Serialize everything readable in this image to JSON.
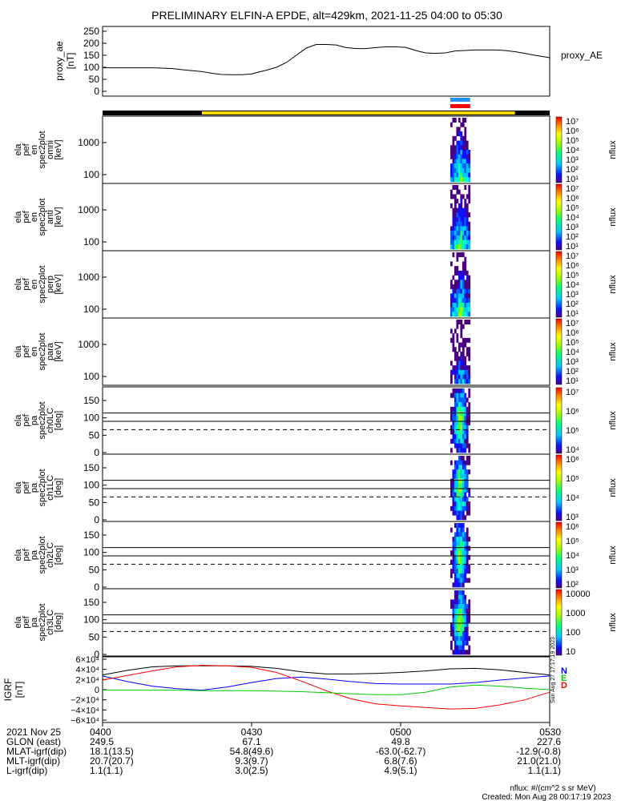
{
  "title": "PRELIMINARY ELFIN-A EPDE, alt=429km, 2021-11-25 04:00 to 05:30",
  "colors": {
    "sunlight_bar": "#ffd700",
    "shadow_bar": "#000000",
    "science_blue": "#1e90ff",
    "science_red": "#ff0000",
    "line_black": "#000000",
    "line_blue": "#0000ff",
    "line_green": "#00cc00",
    "line_red": "#ff0000"
  },
  "chart_data": [
    {
      "type": "line",
      "panel": "proxy_ae",
      "ylabel": [
        "proxy_ae",
        "[nT]"
      ],
      "series": [
        {
          "name": "proxy_AE",
          "x": [
            "04:00",
            "04:10",
            "04:14",
            "04:16",
            "04:20",
            "04:22",
            "04:24",
            "04:26",
            "04:28",
            "04:30",
            "04:31",
            "04:33",
            "04:35",
            "04:37",
            "04:39",
            "04:41",
            "04:43",
            "04:45",
            "04:47",
            "04:49",
            "04:51",
            "04:53",
            "04:55",
            "04:57",
            "04:59",
            "05:01",
            "05:03",
            "05:05",
            "05:07",
            "05:09",
            "05:11",
            "05:13",
            "05:15",
            "05:17",
            "05:19",
            "05:21",
            "05:23",
            "05:25",
            "05:27",
            "05:30"
          ],
          "values": [
            98,
            98,
            95,
            90,
            82,
            75,
            70,
            69,
            69,
            72,
            78,
            88,
            100,
            120,
            150,
            180,
            195,
            195,
            193,
            182,
            178,
            178,
            182,
            185,
            185,
            183,
            170,
            160,
            158,
            160,
            168,
            170,
            172,
            172,
            172,
            170,
            165,
            158,
            150,
            140
          ]
        }
      ],
      "yticks": [
        "250",
        "200",
        "150",
        "100",
        "50",
        "0"
      ],
      "ylim": [
        0,
        260
      ]
    },
    {
      "type": "heatmap",
      "panel": "omni",
      "ylabel": [
        "ela",
        "pef",
        "en",
        "spec2plot",
        "omni",
        "[keV]"
      ],
      "yticks": [
        "1000",
        "100"
      ],
      "colorbar": {
        "label": "nflux",
        "ticks": [
          "10⁷",
          "10⁶",
          "10⁵",
          "10⁴",
          "10³",
          "10²",
          "10¹"
        ]
      },
      "data_window": [
        "05:10",
        "05:14"
      ]
    },
    {
      "type": "heatmap",
      "panel": "anti",
      "ylabel": [
        "ela",
        "pef",
        "en",
        "spec2plot",
        "anti",
        "[keV]"
      ],
      "yticks": [
        "1000",
        "100"
      ],
      "colorbar": {
        "label": "nflux",
        "ticks": [
          "10⁷",
          "10⁶",
          "10⁵",
          "10⁴",
          "10³",
          "10²",
          "10¹"
        ]
      },
      "data_window": [
        "05:10",
        "05:14"
      ]
    },
    {
      "type": "heatmap",
      "panel": "perp",
      "ylabel": [
        "ela",
        "pef",
        "en",
        "spec2plot",
        "perp",
        "[keV]"
      ],
      "yticks": [
        "1000",
        "100"
      ],
      "colorbar": {
        "label": "nflux",
        "ticks": [
          "10⁷",
          "10⁶",
          "10⁵",
          "10⁴",
          "10³",
          "10²",
          "10¹"
        ]
      },
      "data_window": [
        "05:10",
        "05:14"
      ]
    },
    {
      "type": "heatmap",
      "panel": "para",
      "ylabel": [
        "ela",
        "pef",
        "en",
        "spec2plot",
        "para",
        "[keV]"
      ],
      "yticks": [
        "1000",
        "100"
      ],
      "colorbar": {
        "label": "nflux",
        "ticks": [
          "10⁷",
          "10⁶",
          "10⁵",
          "10⁴",
          "10³",
          "10²",
          "10¹"
        ]
      },
      "data_window": [
        "05:10",
        "05:14"
      ]
    },
    {
      "type": "heatmap",
      "panel": "ch0LC",
      "ylabel": [
        "ela",
        "pef",
        "pa",
        "spec2plot",
        "ch0LC",
        "[deg]"
      ],
      "yticks": [
        "150",
        "100",
        "50",
        "0"
      ],
      "ylim": [
        0,
        180
      ],
      "reference_lines": {
        "solid": [
          114,
          90
        ],
        "dashed": [
          66
        ]
      },
      "colorbar": {
        "label": "nflux",
        "ticks": [
          "10⁷",
          "10⁶",
          "10⁵",
          "10⁴"
        ]
      },
      "data_window": [
        "05:10",
        "05:14"
      ]
    },
    {
      "type": "heatmap",
      "panel": "ch1LC",
      "ylabel": [
        "ela",
        "pef",
        "pa",
        "spec2plot",
        "ch1LC",
        "[deg]"
      ],
      "yticks": [
        "150",
        "100",
        "50",
        "0"
      ],
      "ylim": [
        0,
        180
      ],
      "reference_lines": {
        "solid": [
          114,
          90
        ],
        "dashed": [
          66
        ]
      },
      "colorbar": {
        "label": "nflux",
        "ticks": [
          "10⁶",
          "10⁵",
          "10⁴",
          "10³"
        ]
      },
      "data_window": [
        "05:10",
        "05:14"
      ]
    },
    {
      "type": "heatmap",
      "panel": "ch2LC",
      "ylabel": [
        "ela",
        "pef",
        "pa",
        "spec2plot",
        "ch2LC",
        "[deg]"
      ],
      "yticks": [
        "150",
        "100",
        "50",
        "0"
      ],
      "ylim": [
        0,
        180
      ],
      "reference_lines": {
        "solid": [
          114,
          90
        ],
        "dashed": [
          66
        ]
      },
      "colorbar": {
        "label": "nflux",
        "ticks": [
          "10⁶",
          "10⁵",
          "10⁴",
          "10³",
          "10²"
        ]
      },
      "data_window": [
        "05:10",
        "05:14"
      ]
    },
    {
      "type": "heatmap",
      "panel": "ch3LC",
      "ylabel": [
        "ela",
        "pef",
        "pa",
        "spec2plot",
        "ch3LC",
        "[deg]"
      ],
      "yticks": [
        "150",
        "100",
        "50",
        "0"
      ],
      "ylim": [
        0,
        180
      ],
      "reference_lines": {
        "solid": [
          114,
          90
        ],
        "dashed": [
          66
        ]
      },
      "colorbar": {
        "label": "nflux",
        "ticks": [
          "10000",
          "1000",
          "100",
          "10"
        ]
      },
      "data_window": [
        "05:10",
        "05:14"
      ]
    },
    {
      "type": "line",
      "panel": "IGRF",
      "ylabel": [
        "IGRF",
        "[nT]"
      ],
      "yticks": [
        "6×10⁴",
        "4×10⁴",
        "2×10⁴",
        "0",
        "−2×10⁴",
        "−4×10⁴",
        "−6×10⁴"
      ],
      "ylim": [
        -60000,
        60000
      ],
      "legend": [
        "N",
        "E",
        "D"
      ],
      "x": [
        "04:00",
        "04:05",
        "04:10",
        "04:15",
        "04:20",
        "04:25",
        "04:30",
        "04:35",
        "04:40",
        "04:45",
        "04:50",
        "04:55",
        "05:00",
        "05:05",
        "05:10",
        "05:15",
        "05:20",
        "05:25",
        "05:30"
      ],
      "series": [
        {
          "values": [
            29000,
            38000,
            45000,
            47000,
            47000,
            47000,
            46000,
            42000,
            35000,
            31000,
            31000,
            32000,
            34000,
            37000,
            41000,
            42000,
            39000,
            34000,
            29000
          ]
        },
        {
          "values": [
            27000,
            16000,
            7000,
            2000,
            -1000,
            5000,
            14000,
            22000,
            25000,
            21000,
            16000,
            12000,
            11000,
            11000,
            11000,
            14000,
            19000,
            23000,
            27000
          ]
        },
        {
          "values": [
            19000,
            28000,
            37000,
            45000,
            48000,
            47000,
            44000,
            34000,
            17000,
            -2000,
            -18000,
            -28000,
            -32000,
            -35000,
            -38000,
            -37000,
            -30000,
            -20000,
            -5000
          ]
        },
        {
          "values": [
            -1000,
            -1000,
            -1000,
            -1000,
            -2000,
            -2000,
            -2000,
            -3000,
            -4000,
            -6000,
            -8000,
            -10000,
            -10000,
            -5000,
            5000,
            9000,
            7000,
            3000,
            0
          ]
        }
      ]
    }
  ],
  "time_axis": {
    "row_labels": [
      "2021 Nov 25",
      "GLON (east)",
      "MLAT-igrf(dip)",
      "MLT-igrf(dip)",
      "L-igrf(dip)"
    ],
    "columns": [
      {
        "time": "0400",
        "glon": "249.5",
        "mlat": "18.1(13.5)",
        "mlt": "20.7(20.7)",
        "l": "1.1(1.1)"
      },
      {
        "time": "0430",
        "glon": "67.1",
        "mlat": "54.8(49.6)",
        "mlt": "9.3(9.7)",
        "l": "3.0(2.5)"
      },
      {
        "time": "0500",
        "glon": "49.8",
        "mlat": "-63.0(-62.7)",
        "mlt": "6.8(7.6)",
        "l": "4.9(5.1)"
      },
      {
        "time": "0530",
        "glon": "227.6",
        "mlat": "-12.9(-0.8)",
        "mlt": "21.0(21.0)",
        "l": "1.1(1.1)"
      }
    ]
  },
  "proxy_ae_legend": "proxy_AE",
  "side_stamp": "Sun Aug 27 17:17:19 2023",
  "footer": {
    "units": "nflux: #/(cm^2 s sr MeV)",
    "created": "Created: Mon Aug 28 00:17:19 2023"
  }
}
